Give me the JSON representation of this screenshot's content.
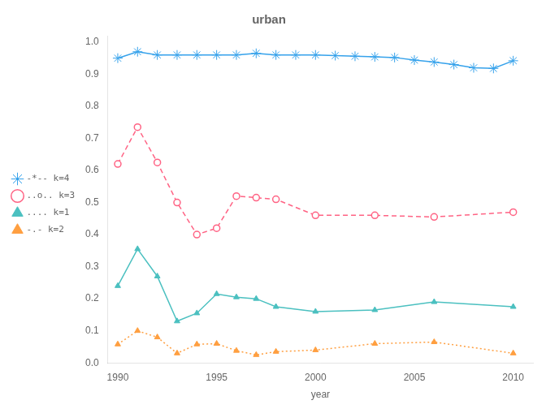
{
  "chart_data": {
    "type": "line",
    "title": "urban",
    "xlabel": "year",
    "xlim": [
      1989.5,
      2011
    ],
    "ylim": [
      0,
      1.02
    ],
    "xticks": [
      1990,
      1995,
      2000,
      2005,
      2010
    ],
    "yticks": [
      {
        "value": 0,
        "label": "0.0"
      },
      0.1,
      0.2,
      0.3,
      0.4,
      0.5,
      0.6,
      0.7,
      0.8,
      0.9,
      {
        "value": 1,
        "label": "1.0"
      }
    ],
    "grid": false,
    "legend": "left",
    "series": [
      {
        "name": "-*-- k=4",
        "marker": "star",
        "line_style": "solid",
        "x": [
          1990,
          1991,
          1992,
          1993,
          1994,
          1995,
          1996,
          1997,
          1998,
          1999,
          2000,
          2001,
          2002,
          2003,
          2004,
          2005,
          2006,
          2007,
          2008,
          2009,
          2010
        ],
        "values": [
          0.95,
          0.97,
          0.96,
          0.96,
          0.96,
          0.96,
          0.96,
          0.965,
          0.96,
          0.96,
          0.96,
          0.958,
          0.956,
          0.954,
          0.952,
          0.944,
          0.938,
          0.93,
          0.92,
          0.918,
          0.942
        ]
      },
      {
        "name": "..o.. k=3",
        "marker": "open_circle",
        "line_style": "dashed",
        "x": [
          1990,
          1991,
          1992,
          1993,
          1994,
          1995,
          1996,
          1997,
          1998,
          2000,
          2003,
          2006,
          2010
        ],
        "values": [
          0.62,
          0.735,
          0.625,
          0.5,
          0.4,
          0.42,
          0.52,
          0.515,
          0.51,
          0.46,
          0.46,
          0.455,
          0.47
        ]
      },
      {
        "name": ".... k=1",
        "marker": "triangle",
        "line_style": "solid",
        "x": [
          1990,
          1991,
          1992,
          1993,
          1994,
          1995,
          1996,
          1997,
          1998,
          2000,
          2003,
          2006,
          2010
        ],
        "values": [
          0.24,
          0.355,
          0.27,
          0.13,
          0.155,
          0.215,
          0.205,
          0.2,
          0.175,
          0.16,
          0.165,
          0.19,
          0.175
        ]
      },
      {
        "name": "-.- k=2",
        "marker": "triangle",
        "line_style": "dotted",
        "x": [
          1990,
          1991,
          1992,
          1993,
          1994,
          1995,
          1996,
          1997,
          1998,
          2000,
          2003,
          2006,
          2010
        ],
        "values": [
          0.058,
          0.1,
          0.08,
          0.03,
          0.058,
          0.06,
          0.038,
          0.025,
          0.035,
          0.04,
          0.06,
          0.065,
          0.03
        ]
      }
    ]
  }
}
